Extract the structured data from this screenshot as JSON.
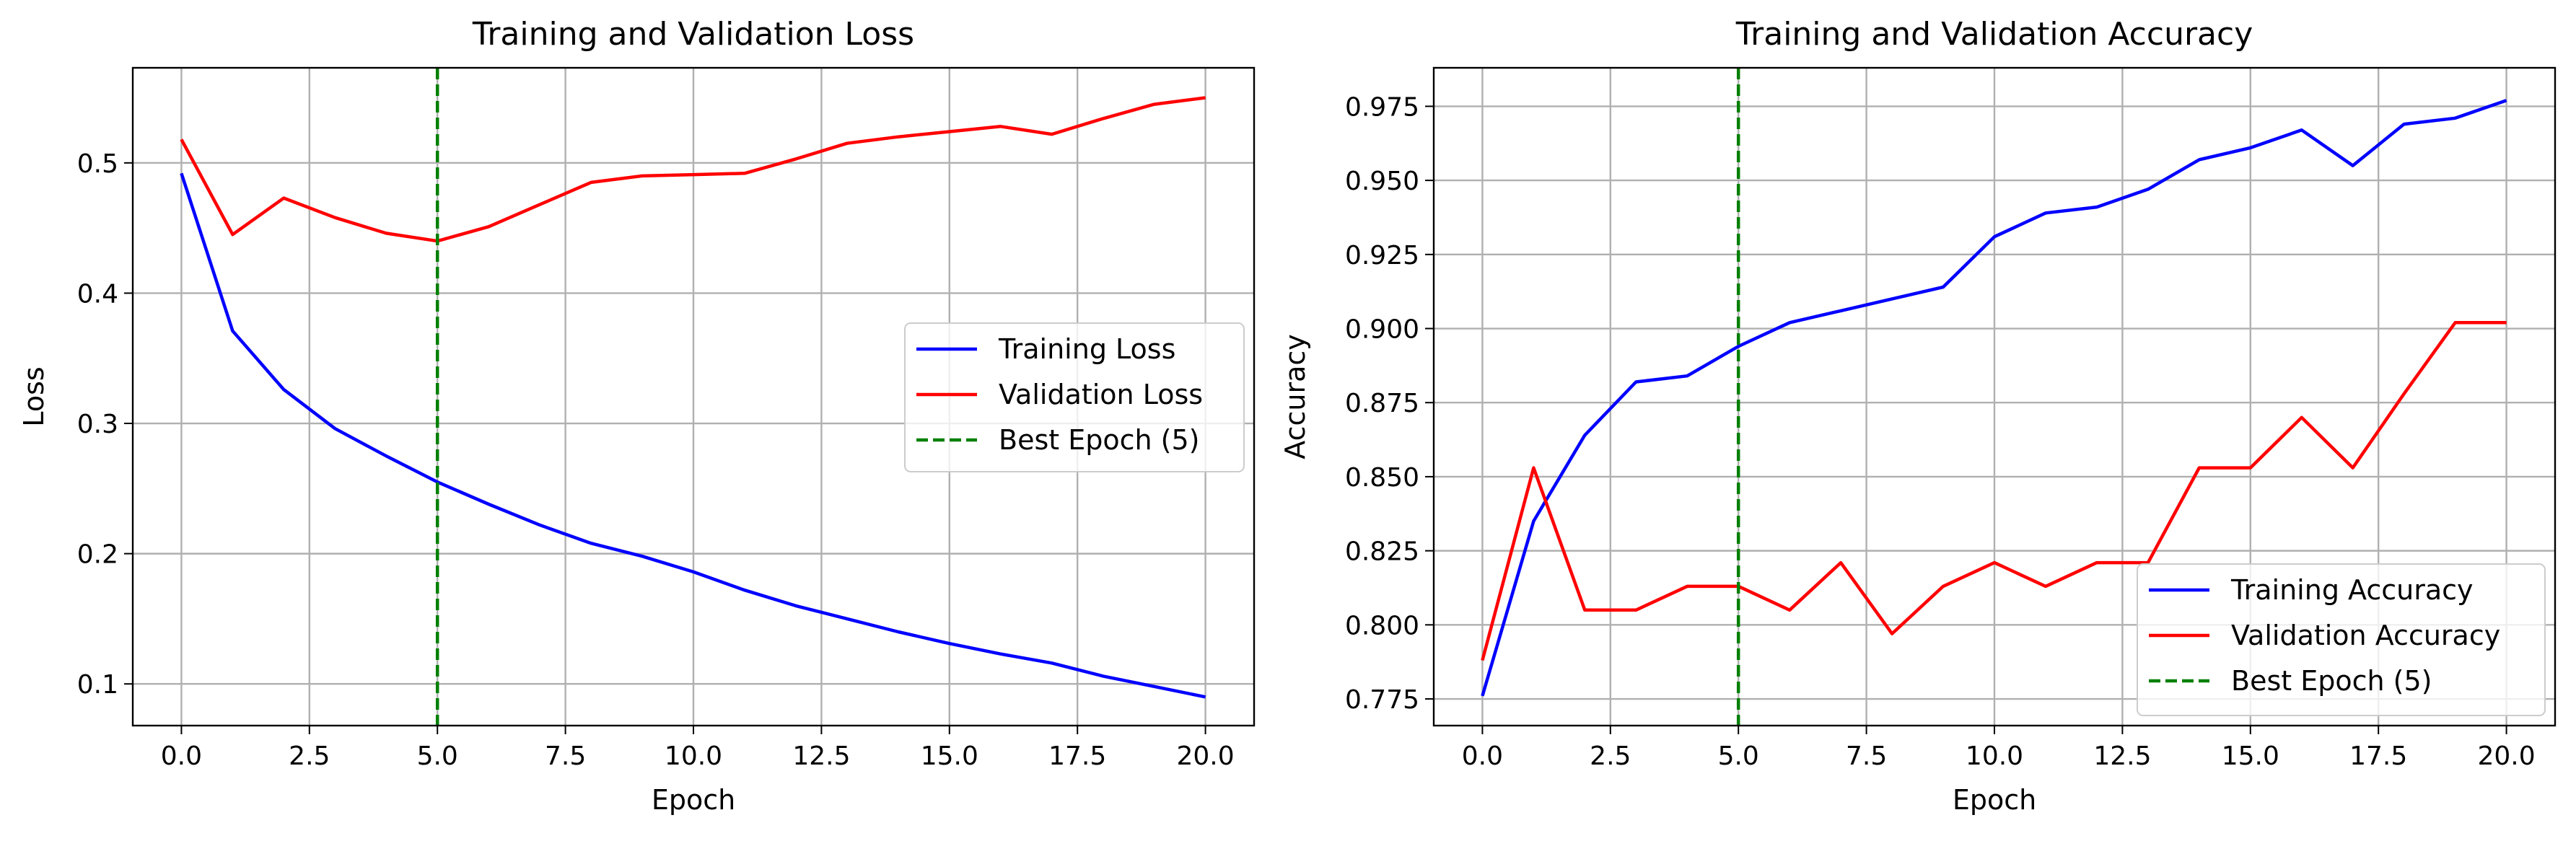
{
  "chart_data": [
    {
      "type": "line",
      "title": "Training and Validation Loss",
      "xlabel": "Epoch",
      "ylabel": "Loss",
      "x": [
        0,
        1,
        2,
        3,
        4,
        5,
        6,
        7,
        8,
        9,
        10,
        11,
        12,
        13,
        14,
        15,
        16,
        17,
        18,
        19,
        20
      ],
      "xlim": [
        -0.95,
        20.95
      ],
      "ylim": [
        0.068,
        0.573
      ],
      "xticks": [
        0,
        2.5,
        5,
        7.5,
        10,
        12.5,
        15,
        17.5,
        20
      ],
      "xtick_labels": [
        "0.0",
        "2.5",
        "5.0",
        "7.5",
        "10.0",
        "12.5",
        "15.0",
        "17.5",
        "20.0"
      ],
      "yticks": [
        0.1,
        0.2,
        0.3,
        0.4,
        0.5
      ],
      "ytick_labels": [
        "0.1",
        "0.2",
        "0.3",
        "0.4",
        "0.5"
      ],
      "grid": true,
      "legend_position": "center-right",
      "series": [
        {
          "name": "Training Loss",
          "color": "#0000ff",
          "style": "solid",
          "values": [
            0.492,
            0.371,
            0.326,
            0.296,
            0.275,
            0.255,
            0.238,
            0.222,
            0.208,
            0.198,
            0.186,
            0.172,
            0.16,
            0.15,
            0.14,
            0.131,
            0.123,
            0.116,
            0.106,
            0.098,
            0.09
          ]
        },
        {
          "name": "Validation Loss",
          "color": "#ff0000",
          "style": "solid",
          "values": [
            0.518,
            0.445,
            0.473,
            0.458,
            0.446,
            0.44,
            0.451,
            0.468,
            0.485,
            0.49,
            0.491,
            0.492,
            0.503,
            0.515,
            0.52,
            0.524,
            0.528,
            0.522,
            0.534,
            0.545,
            0.55
          ]
        }
      ],
      "vline": {
        "name": "Best Epoch (5)",
        "x": 5,
        "color": "#008000",
        "style": "dashed"
      }
    },
    {
      "type": "line",
      "title": "Training and Validation Accuracy",
      "xlabel": "Epoch",
      "ylabel": "Accuracy",
      "x": [
        0,
        1,
        2,
        3,
        4,
        5,
        6,
        7,
        8,
        9,
        10,
        11,
        12,
        13,
        14,
        15,
        16,
        17,
        18,
        19,
        20
      ],
      "xlim": [
        -0.95,
        20.95
      ],
      "ylim": [
        0.766,
        0.988
      ],
      "xticks": [
        0,
        2.5,
        5,
        7.5,
        10,
        12.5,
        15,
        17.5,
        20
      ],
      "xtick_labels": [
        "0.0",
        "2.5",
        "5.0",
        "7.5",
        "10.0",
        "12.5",
        "15.0",
        "17.5",
        "20.0"
      ],
      "yticks": [
        0.775,
        0.8,
        0.825,
        0.85,
        0.875,
        0.9,
        0.925,
        0.95,
        0.975
      ],
      "ytick_labels": [
        "0.775",
        "0.800",
        "0.825",
        "0.850",
        "0.875",
        "0.900",
        "0.925",
        "0.950",
        "0.975"
      ],
      "grid": true,
      "legend_position": "lower-right",
      "series": [
        {
          "name": "Training Accuracy",
          "color": "#0000ff",
          "style": "solid",
          "values": [
            0.776,
            0.835,
            0.864,
            0.882,
            0.884,
            0.894,
            0.902,
            0.906,
            0.91,
            0.914,
            0.931,
            0.939,
            0.941,
            0.947,
            0.957,
            0.961,
            0.967,
            0.955,
            0.969,
            0.971,
            0.977
          ]
        },
        {
          "name": "Validation Accuracy",
          "color": "#ff0000",
          "style": "solid",
          "values": [
            0.788,
            0.853,
            0.805,
            0.805,
            0.813,
            0.813,
            0.805,
            0.821,
            0.797,
            0.813,
            0.821,
            0.813,
            0.821,
            0.821,
            0.853,
            0.853,
            0.87,
            0.853,
            0.878,
            0.902,
            0.902
          ]
        }
      ],
      "vline": {
        "name": "Best Epoch (5)",
        "x": 5,
        "color": "#008000",
        "style": "dashed"
      }
    }
  ]
}
